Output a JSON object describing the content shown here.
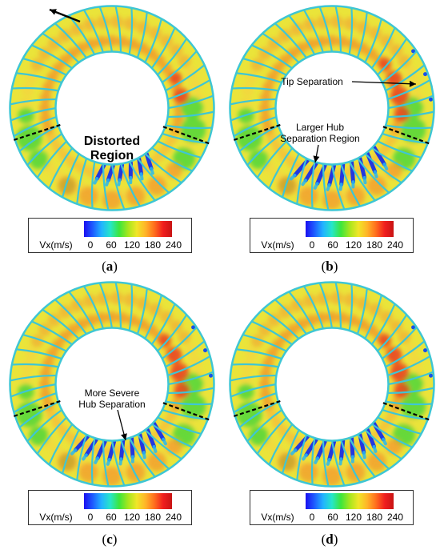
{
  "panels": [
    {
      "id": "a",
      "caption": "a",
      "annotations": [
        "Distorted",
        "Region"
      ]
    },
    {
      "id": "b",
      "caption": "b",
      "annotations": [
        "Tip Separation",
        "Larger Hub",
        "Separation Region"
      ]
    },
    {
      "id": "c",
      "caption": "c",
      "annotations": [
        "More Severe",
        "Hub Separation"
      ]
    },
    {
      "id": "d",
      "caption": "d",
      "annotations": []
    }
  ],
  "colorbar": {
    "variable": "Vx(m/s)",
    "ticks": [
      "0",
      "60",
      "120",
      "180",
      "240"
    ],
    "colors": [
      "#1a0ff0",
      "#1e5cff",
      "#22b4ff",
      "#26e6c8",
      "#3ce63c",
      "#a6e61e",
      "#f0e628",
      "#ffb428",
      "#ff6e1e",
      "#f01e1e",
      "#c81414"
    ]
  },
  "rotation_arrow": "rotation-direction-arrow",
  "colors": {
    "blade": "#41c8d2",
    "flow_base": "#e6e632",
    "outline": "#000000"
  }
}
